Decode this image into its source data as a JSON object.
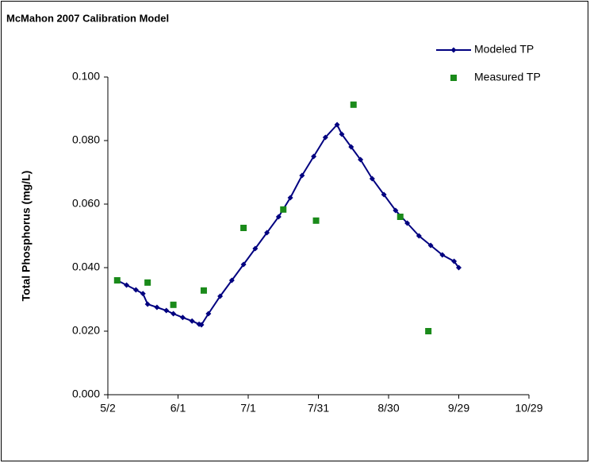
{
  "chart_data": {
    "type": "line",
    "title": "McMahon 2007 Calibration Model",
    "y_label": "Total Phosphorus (mg/L)",
    "xlim": [
      122,
      302
    ],
    "xticks": [
      {
        "value": 122,
        "label": "5/2"
      },
      {
        "value": 152,
        "label": "6/1"
      },
      {
        "value": 182,
        "label": "7/1"
      },
      {
        "value": 212,
        "label": "7/31"
      },
      {
        "value": 242,
        "label": "8/30"
      },
      {
        "value": 272,
        "label": "9/29"
      },
      {
        "value": 302,
        "label": "10/29"
      }
    ],
    "ylim": [
      0,
      0.1
    ],
    "yticks": [
      {
        "value": 0,
        "label": "0.000"
      },
      {
        "value": 0.02,
        "label": "0.020"
      },
      {
        "value": 0.04,
        "label": "0.040"
      },
      {
        "value": 0.06,
        "label": "0.060"
      },
      {
        "value": 0.08,
        "label": "0.080"
      },
      {
        "value": 0.1,
        "label": "0.100"
      }
    ],
    "legend": "upper right",
    "series": [
      {
        "name": "Modeled TP",
        "color": "#000080",
        "style": "line",
        "x": [
          126,
          130,
          134,
          137,
          139,
          143,
          147,
          150,
          154,
          158,
          161,
          162,
          165,
          170,
          175,
          180,
          185,
          190,
          195,
          200,
          205,
          210,
          215,
          220,
          222,
          226,
          230,
          235,
          240,
          245,
          250,
          255,
          260,
          265,
          270,
          272
        ],
        "values": [
          0.036,
          0.0345,
          0.033,
          0.0318,
          0.0285,
          0.0275,
          0.0265,
          0.0255,
          0.0243,
          0.0232,
          0.0222,
          0.022,
          0.0255,
          0.031,
          0.036,
          0.041,
          0.046,
          0.051,
          0.056,
          0.062,
          0.069,
          0.075,
          0.081,
          0.085,
          0.082,
          0.078,
          0.074,
          0.068,
          0.063,
          0.058,
          0.054,
          0.05,
          0.047,
          0.044,
          0.042,
          0.04
        ]
      },
      {
        "name": "Measured TP",
        "color": "#1a8a1a",
        "style": "scatter",
        "x": [
          126,
          139,
          150,
          163,
          180,
          197,
          211,
          227,
          247,
          259
        ],
        "values": [
          0.036,
          0.0353,
          0.0283,
          0.0328,
          0.0525,
          0.0583,
          0.0548,
          0.0913,
          0.056,
          0.02
        ]
      }
    ]
  }
}
